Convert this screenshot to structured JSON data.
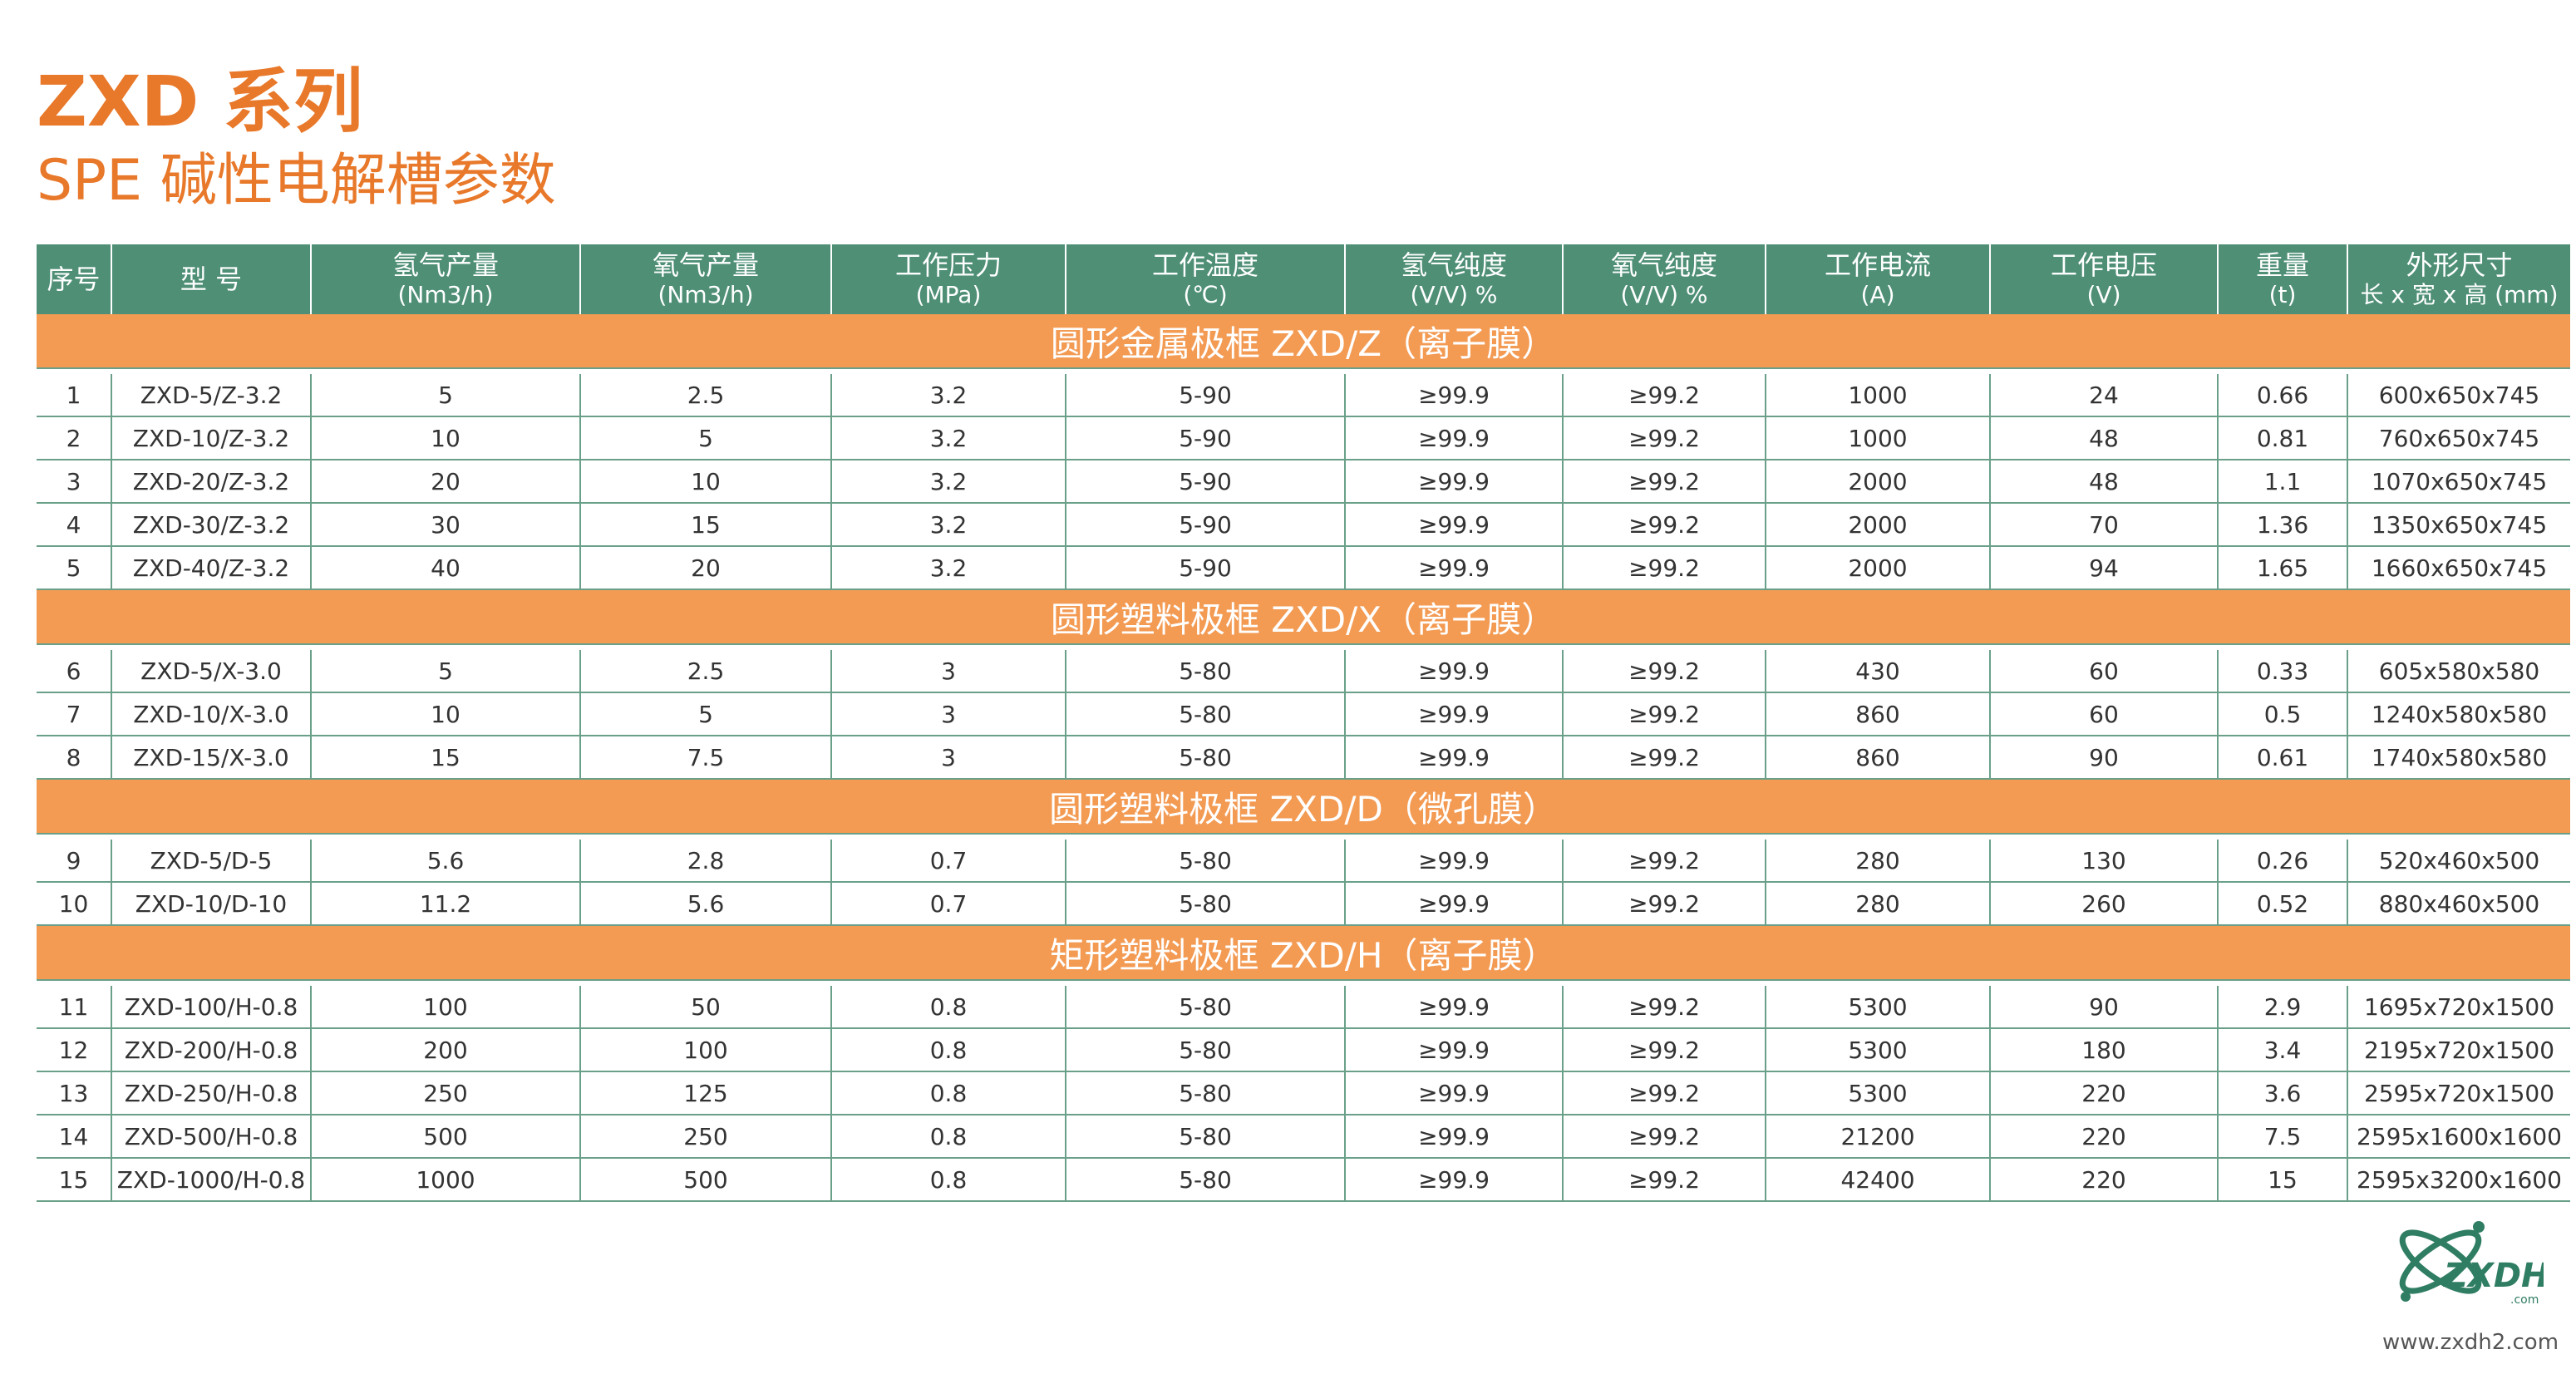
{
  "title": "ZXD 系列",
  "subtitle": "SPE 碱性电解槽参数",
  "columns": [
    {
      "main": "序号",
      "unit": ""
    },
    {
      "main": "型 号",
      "unit": ""
    },
    {
      "main": "氢气产量",
      "unit": "(Nm3/h)"
    },
    {
      "main": "氧气产量",
      "unit": "(Nm3/h)"
    },
    {
      "main": "工作压力",
      "unit": "(MPa)"
    },
    {
      "main": "工作温度",
      "unit": "(℃)"
    },
    {
      "main": "氢气纯度",
      "unit": "(V/V) %"
    },
    {
      "main": "氧气纯度",
      "unit": "(V/V) %"
    },
    {
      "main": "工作电流",
      "unit": "(A)"
    },
    {
      "main": "工作电压",
      "unit": "(V)"
    },
    {
      "main": "重量",
      "unit": "(t)"
    },
    {
      "main": "外形尺寸",
      "unit": "长 x 宽 x 高 (mm)"
    }
  ],
  "sections": [
    {
      "label": "圆形金属极框 ZXD/Z（离子膜）",
      "rows": [
        [
          "1",
          "ZXD-5/Z-3.2",
          "5",
          "2.5",
          "3.2",
          "5-90",
          "≥99.9",
          "≥99.2",
          "1000",
          "24",
          "0.66",
          "600x650x745"
        ],
        [
          "2",
          "ZXD-10/Z-3.2",
          "10",
          "5",
          "3.2",
          "5-90",
          "≥99.9",
          "≥99.2",
          "1000",
          "48",
          "0.81",
          "760x650x745"
        ],
        [
          "3",
          "ZXD-20/Z-3.2",
          "20",
          "10",
          "3.2",
          "5-90",
          "≥99.9",
          "≥99.2",
          "2000",
          "48",
          "1.1",
          "1070x650x745"
        ],
        [
          "4",
          "ZXD-30/Z-3.2",
          "30",
          "15",
          "3.2",
          "5-90",
          "≥99.9",
          "≥99.2",
          "2000",
          "70",
          "1.36",
          "1350x650x745"
        ],
        [
          "5",
          "ZXD-40/Z-3.2",
          "40",
          "20",
          "3.2",
          "5-90",
          "≥99.9",
          "≥99.2",
          "2000",
          "94",
          "1.65",
          "1660x650x745"
        ]
      ]
    },
    {
      "label": "圆形塑料极框 ZXD/X（离子膜）",
      "rows": [
        [
          "6",
          "ZXD-5/X-3.0",
          "5",
          "2.5",
          "3",
          "5-80",
          "≥99.9",
          "≥99.2",
          "430",
          "60",
          "0.33",
          "605x580x580"
        ],
        [
          "7",
          "ZXD-10/X-3.0",
          "10",
          "5",
          "3",
          "5-80",
          "≥99.9",
          "≥99.2",
          "860",
          "60",
          "0.5",
          "1240x580x580"
        ],
        [
          "8",
          "ZXD-15/X-3.0",
          "15",
          "7.5",
          "3",
          "5-80",
          "≥99.9",
          "≥99.2",
          "860",
          "90",
          "0.61",
          "1740x580x580"
        ]
      ]
    },
    {
      "label": "圆形塑料极框 ZXD/D（微孔膜）",
      "rows": [
        [
          "9",
          "ZXD-5/D-5",
          "5.6",
          "2.8",
          "0.7",
          "5-80",
          "≥99.9",
          "≥99.2",
          "280",
          "130",
          "0.26",
          "520x460x500"
        ],
        [
          "10",
          "ZXD-10/D-10",
          "11.2",
          "5.6",
          "0.7",
          "5-80",
          "≥99.9",
          "≥99.2",
          "280",
          "260",
          "0.52",
          "880x460x500"
        ]
      ]
    },
    {
      "label": "矩形塑料极框 ZXD/H（离子膜）",
      "rows": [
        [
          "11",
          "ZXD-100/H-0.8",
          "100",
          "50",
          "0.8",
          "5-80",
          "≥99.9",
          "≥99.2",
          "5300",
          "90",
          "2.9",
          "1695x720x1500"
        ],
        [
          "12",
          "ZXD-200/H-0.8",
          "200",
          "100",
          "0.8",
          "5-80",
          "≥99.9",
          "≥99.2",
          "5300",
          "180",
          "3.4",
          "2195x720x1500"
        ],
        [
          "13",
          "ZXD-250/H-0.8",
          "250",
          "125",
          "0.8",
          "5-80",
          "≥99.9",
          "≥99.2",
          "5300",
          "220",
          "3.6",
          "2595x720x1500"
        ],
        [
          "14",
          "ZXD-500/H-0.8",
          "500",
          "250",
          "0.8",
          "5-80",
          "≥99.9",
          "≥99.2",
          "21200",
          "220",
          "7.5",
          "2595x1600x1600"
        ],
        [
          "15",
          "ZXD-1000/H-0.8",
          "1000",
          "500",
          "0.8",
          "5-80",
          "≥99.9",
          "≥99.2",
          "42400",
          "220",
          "15",
          "2595x3200x1600"
        ]
      ]
    }
  ],
  "logo": {
    "text": "ZXDH2",
    "sub": ".com",
    "color": "#2f7d62"
  },
  "website": "www.zxdh2.com",
  "colors": {
    "accent": "#e8782a",
    "header": "#4e8f76",
    "section": "#f39a53",
    "grid": "#6aa089"
  }
}
